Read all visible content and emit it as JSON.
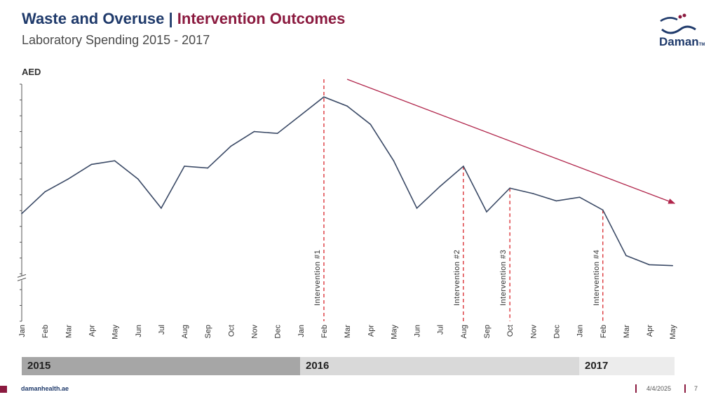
{
  "header": {
    "title_part1": "Waste and Overuse",
    "title_separator": "|",
    "title_part2": "Intervention Outcomes",
    "subtitle": "Laboratory Spending 2015 - 2017"
  },
  "logo": {
    "arabic_text": "ضمان",
    "word": "Daman",
    "tm": "TM"
  },
  "colors": {
    "title_blue": "#1f3a6b",
    "accent_red": "#8b1a3f",
    "line": "#3b4a66",
    "intervention_line": "#d9262b",
    "trend_arrow": "#b0244a"
  },
  "chart_data": {
    "type": "line",
    "ylabel": "AED",
    "y_axis_break": true,
    "x": [
      "Jan",
      "Feb",
      "Mar",
      "Apr",
      "May",
      "Jun",
      "Jul",
      "Aug",
      "Sep",
      "Oct",
      "Nov",
      "Dec",
      "Jan",
      "Feb",
      "Mar",
      "Apr",
      "May",
      "Jun",
      "Jul",
      "Aug",
      "Sep",
      "Oct",
      "Nov",
      "Dec",
      "Jan",
      "Feb",
      "Mar",
      "Apr",
      "May"
    ],
    "series": [
      {
        "values": [
          39,
          51,
          58,
          66,
          68,
          58,
          42,
          65,
          64,
          76,
          84,
          83,
          93,
          103,
          98,
          88,
          68,
          42,
          54,
          65,
          40,
          53,
          50,
          46,
          48,
          41,
          16,
          11,
          10.5
        ]
      }
    ],
    "ylim": [
      -20,
      110
    ],
    "interventions": [
      {
        "label": "Intervention #1",
        "x_index": 13
      },
      {
        "label": "Intervention #2",
        "x_index": 19
      },
      {
        "label": "Intervention #3",
        "x_index": 21
      },
      {
        "label": "Intervention #4",
        "x_index": 25
      }
    ],
    "trend_arrow": {
      "from_index": 14,
      "to_index": 28,
      "direction": "down"
    },
    "years": [
      {
        "label": "2015"
      },
      {
        "label": "2016"
      },
      {
        "label": "2017"
      }
    ]
  },
  "footer": {
    "site": "damanhealth.ae",
    "date": "4/4/2025",
    "page": "7"
  }
}
